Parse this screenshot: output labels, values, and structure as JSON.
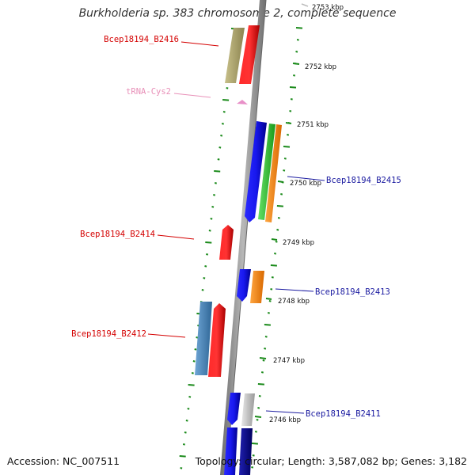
{
  "title": "Burkholderia sp. 383 chromosome 2, complete sequence",
  "footer": {
    "accession": "Accession: NC_007511",
    "summary": "Topology: circular; Length: 3,587,082 bp; Genes: 3,182"
  },
  "colors": {
    "backbone": "#8a8a8a",
    "tick": "#1a8a1a",
    "forward_label": "#d40000",
    "reverse_label": "#1a1aa0",
    "trna_label": "#e890b8"
  },
  "kbp_labels": [
    "2753 kbp",
    "2752 kbp",
    "2751 kbp",
    "2750 kbp",
    "2749 kbp",
    "2748 kbp",
    "2747 kbp",
    "2746 kbp"
  ],
  "gene_labels": {
    "b2416": "Bcep18194_B2416",
    "trna": "tRNA-Cys2",
    "b2415": "Bcep18194_B2415",
    "b2414": "Bcep18194_B2414",
    "b2413": "Bcep18194_B2413",
    "b2412": "Bcep18194_B2412",
    "b2411": "Bcep18194_B2411"
  }
}
